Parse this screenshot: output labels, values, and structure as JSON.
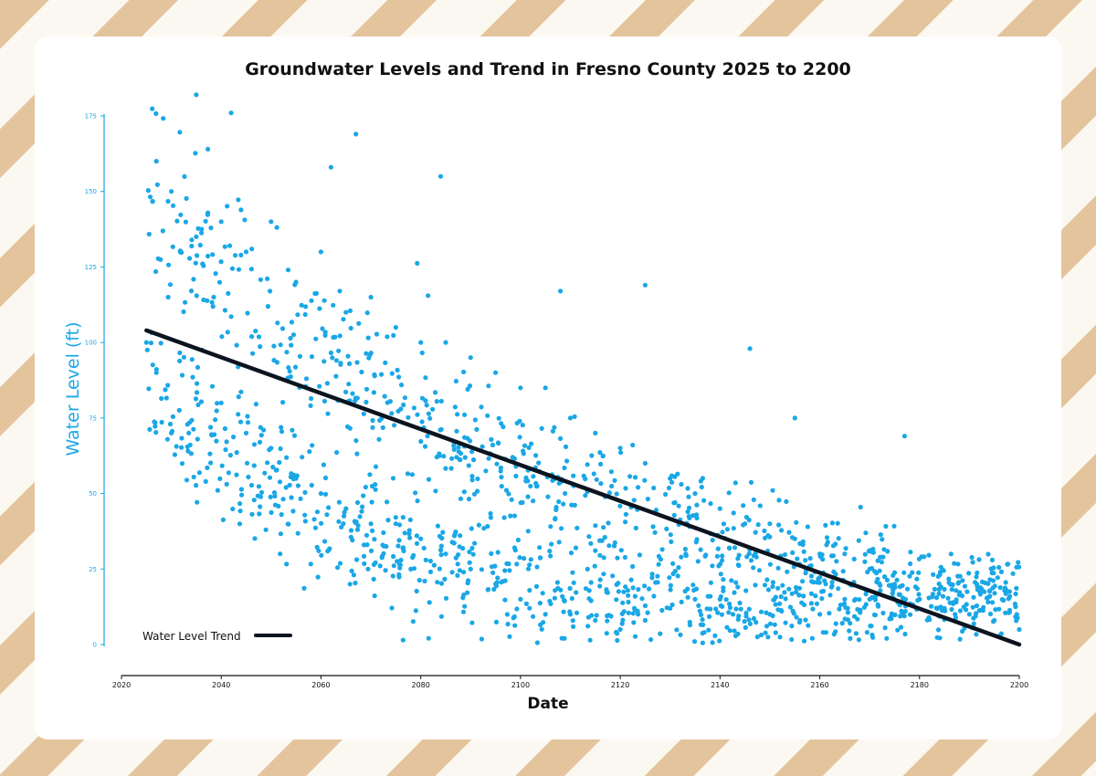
{
  "colors": {
    "background": "#fbf8f1",
    "stripe": "#e4c49c",
    "card": "#ffffff",
    "point": "#1aa7e6",
    "trend": "#0c1420",
    "y_axis": "#1aa7e6",
    "x_axis": "#111111"
  },
  "chart_data": {
    "type": "scatter",
    "title": "Groundwater Levels and Trend in Fresno County 2025 to 2200",
    "xlabel": "Date",
    "ylabel": "Water Level (ft)",
    "xlim": [
      2020,
      2200
    ],
    "ylim": [
      0,
      175
    ],
    "x_ticks": [
      "2020",
      "2040",
      "2060",
      "2080",
      "2100",
      "2120",
      "2140",
      "2160",
      "2180",
      "2200"
    ],
    "y_ticks": [
      "0",
      "25",
      "50",
      "75",
      "100",
      "125",
      "150",
      "175"
    ],
    "grid": false,
    "legend_position": "bottom-left",
    "series": [
      {
        "name": "Water Level Trend",
        "type": "line",
        "x": [
          2025,
          2200
        ],
        "y": [
          104,
          0
        ]
      }
    ],
    "scatter": {
      "x_range": [
        2025,
        2200
      ],
      "approx_count": 1500,
      "pattern": "Two clusters: an upper band decaying from about 150 ft in 2025 to about 10 ft in 2200 and a lower band decaying from about 90 ft in 2025 to near 0 ft around 2115, then rising slightly to about 15 ft by 2200; overall spread narrows over time.",
      "sample_points": [
        [
          2025,
          100
        ],
        [
          2027,
          160
        ],
        [
          2027,
          90
        ],
        [
          2030,
          150
        ],
        [
          2030,
          70
        ],
        [
          2035,
          182
        ],
        [
          2035,
          135
        ],
        [
          2040,
          140
        ],
        [
          2040,
          80
        ],
        [
          2042,
          176
        ],
        [
          2045,
          130
        ],
        [
          2045,
          70
        ],
        [
          2050,
          140
        ],
        [
          2050,
          65
        ],
        [
          2055,
          120
        ],
        [
          2055,
          55
        ],
        [
          2060,
          130
        ],
        [
          2060,
          50
        ],
        [
          2062,
          158
        ],
        [
          2065,
          110
        ],
        [
          2065,
          45
        ],
        [
          2067,
          169
        ],
        [
          2070,
          115
        ],
        [
          2070,
          40
        ],
        [
          2075,
          105
        ],
        [
          2075,
          40
        ],
        [
          2080,
          100
        ],
        [
          2080,
          35
        ],
        [
          2084,
          155
        ],
        [
          2085,
          100
        ],
        [
          2085,
          30
        ],
        [
          2090,
          95
        ],
        [
          2090,
          25
        ],
        [
          2095,
          90
        ],
        [
          2095,
          20
        ],
        [
          2100,
          85
        ],
        [
          2100,
          15
        ],
        [
          2105,
          85
        ],
        [
          2105,
          10
        ],
        [
          2108,
          117
        ],
        [
          2110,
          75
        ],
        [
          2110,
          10
        ],
        [
          2115,
          70
        ],
        [
          2115,
          8
        ],
        [
          2120,
          65
        ],
        [
          2120,
          5
        ],
        [
          2125,
          119
        ],
        [
          2125,
          60
        ],
        [
          2125,
          8
        ],
        [
          2130,
          55
        ],
        [
          2130,
          12
        ],
        [
          2135,
          50
        ],
        [
          2135,
          15
        ],
        [
          2140,
          45
        ],
        [
          2140,
          15
        ],
        [
          2146,
          98
        ],
        [
          2145,
          40
        ],
        [
          2150,
          40
        ],
        [
          2150,
          10
        ],
        [
          2155,
          75
        ],
        [
          2155,
          35
        ],
        [
          2160,
          30
        ],
        [
          2160,
          10
        ],
        [
          2165,
          30
        ],
        [
          2165,
          15
        ],
        [
          2170,
          25
        ],
        [
          2170,
          15
        ],
        [
          2175,
          20
        ],
        [
          2177,
          69
        ],
        [
          2180,
          15
        ],
        [
          2185,
          12
        ],
        [
          2190,
          10
        ],
        [
          2195,
          8
        ],
        [
          2200,
          5
        ]
      ]
    }
  }
}
